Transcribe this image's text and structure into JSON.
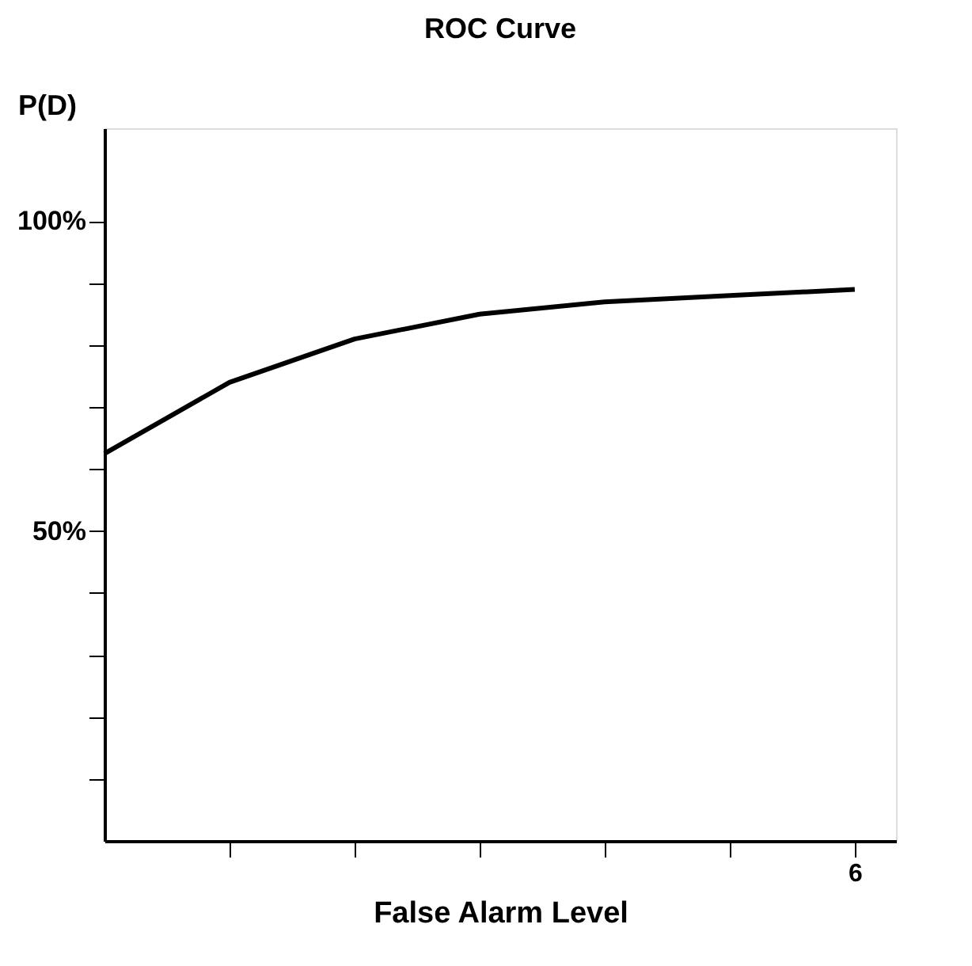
{
  "chart_data": {
    "type": "line",
    "title": "ROC Curve",
    "xlabel": "False Alarm Level",
    "ylabel": "P(D)",
    "categories": [
      null,
      null,
      null,
      null,
      null,
      null,
      "6"
    ],
    "series": [
      {
        "color": "#000000",
        "values": [
          62.5,
          74,
          81,
          85,
          87,
          88,
          89
        ]
      }
    ],
    "ylim": [
      0,
      115
    ],
    "yticks": [
      {
        "value": 10,
        "label": null
      },
      {
        "value": 20,
        "label": null
      },
      {
        "value": 30,
        "label": null
      },
      {
        "value": 40,
        "label": null
      },
      {
        "value": 50,
        "label": "50%"
      },
      {
        "value": 60,
        "label": null
      },
      {
        "value": 70,
        "label": null
      },
      {
        "value": 80,
        "label": null
      },
      {
        "value": 90,
        "label": null
      },
      {
        "value": 100,
        "label": "100%"
      }
    ],
    "grid": false,
    "legend": false,
    "marker": "none",
    "line_style": "solid"
  }
}
